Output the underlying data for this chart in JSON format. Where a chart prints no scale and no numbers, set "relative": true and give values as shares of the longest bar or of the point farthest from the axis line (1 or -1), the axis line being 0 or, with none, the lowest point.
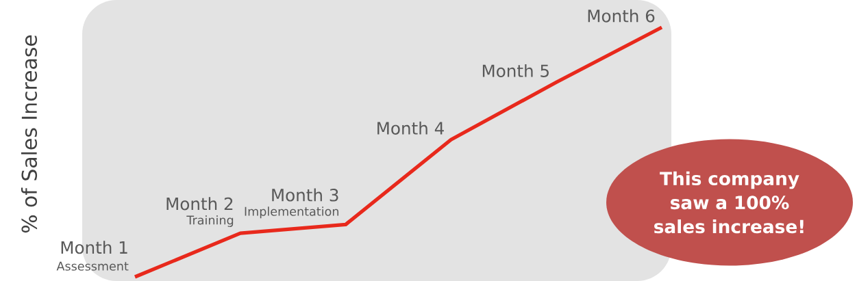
{
  "chart_data": {
    "type": "line",
    "relative": true,
    "ylabel": "% of Sales Increase",
    "categories": [
      "Month 1",
      "Month 2",
      "Month 3",
      "Month 4",
      "Month 5",
      "Month 6"
    ],
    "values": [
      0,
      0.175,
      0.21,
      0.55,
      0.78,
      1
    ],
    "color": "#e8291c",
    "marker": "none",
    "line_style": "solid",
    "annotations": [
      {
        "text": "Assessment",
        "x": "Month 1",
        "y": 0
      },
      {
        "text": "Training",
        "x": "Month 2",
        "y": 0.175
      },
      {
        "text": "Implementation",
        "x": "Month 3",
        "y": 0.21
      },
      "This company saw a 100% sales increase!"
    ]
  }
}
